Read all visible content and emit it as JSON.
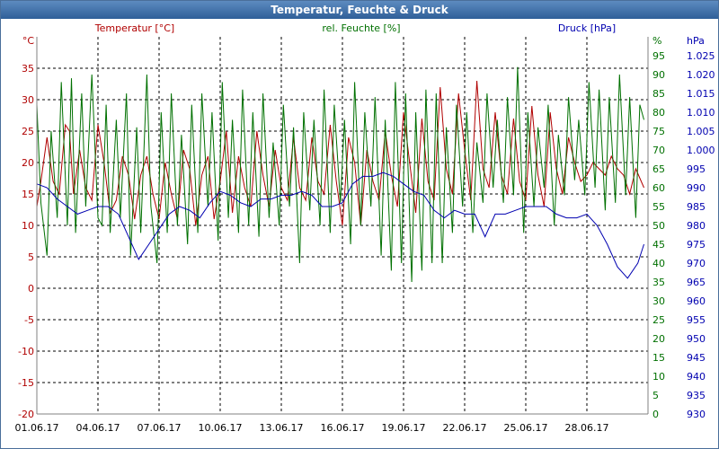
{
  "window": {
    "title": "Temperatur, Feuchte & Druck"
  },
  "chart_data": {
    "type": "line",
    "title": "Temperatur, Feuchte & Druck",
    "grid": true,
    "axes": {
      "temperature": {
        "label": "Temperatur [°C]",
        "unit": "°C",
        "range": [
          -20,
          40
        ],
        "ticks": [
          -20,
          -15,
          -10,
          -5,
          0,
          5,
          10,
          15,
          20,
          25,
          30,
          35
        ],
        "color": "#b00000"
      },
      "humidity": {
        "label": "rel. Feuchte [%]",
        "unit": "%",
        "range": [
          0,
          100
        ],
        "ticks": [
          0,
          5,
          10,
          15,
          20,
          25,
          30,
          35,
          40,
          45,
          50,
          55,
          60,
          65,
          70,
          75,
          80,
          85,
          90,
          95
        ],
        "color": "#007000"
      },
      "pressure": {
        "label": "Druck [hPa]",
        "unit": "hPa",
        "range": [
          930,
          1030
        ],
        "ticks": [
          "930",
          "935",
          "940",
          "945",
          "950",
          "955",
          "960",
          "965",
          "970",
          "975",
          "980",
          "985",
          "990",
          "995",
          "1.000",
          "1.005",
          "1.010",
          "1.015",
          "1.020",
          "1.025"
        ],
        "color": "#0000b0"
      }
    },
    "x_axis": {
      "start": "01.06.17",
      "days": 30,
      "tick_labels": [
        "01.06.17",
        "04.06.17",
        "07.06.17",
        "10.06.17",
        "13.06.17",
        "16.06.17",
        "19.06.17",
        "22.06.17",
        "25.06.17",
        "28.06.17"
      ]
    },
    "series": [
      {
        "name": "Temperatur [°C]",
        "axis": "temperature",
        "color": "#b00000",
        "x": [
          0,
          0.2,
          0.5,
          0.8,
          1.1,
          1.4,
          1.6,
          1.8,
          2.1,
          2.4,
          2.7,
          3.0,
          3.3,
          3.6,
          3.9,
          4.2,
          4.5,
          4.8,
          5.1,
          5.4,
          5.7,
          6.0,
          6.3,
          6.6,
          6.9,
          7.2,
          7.5,
          7.8,
          8.1,
          8.4,
          8.7,
          9.0,
          9.3,
          9.6,
          9.9,
          10.2,
          10.5,
          10.8,
          11.1,
          11.4,
          11.7,
          12.0,
          12.3,
          12.6,
          12.9,
          13.2,
          13.5,
          13.8,
          14.1,
          14.4,
          14.7,
          15.0,
          15.3,
          15.6,
          15.9,
          16.2,
          16.5,
          16.8,
          17.1,
          17.4,
          17.7,
          18.0,
          18.3,
          18.6,
          18.9,
          19.2,
          19.5,
          19.8,
          20.1,
          20.4,
          20.7,
          21.0,
          21.3,
          21.6,
          21.9,
          22.2,
          22.5,
          22.8,
          23.1,
          23.4,
          23.7,
          24.0,
          24.3,
          24.6,
          24.9,
          25.2,
          25.5,
          25.8,
          26.1,
          26.4,
          26.7,
          27.0,
          27.3,
          27.6,
          27.9,
          28.2,
          28.5,
          28.8,
          29.1,
          29.4,
          29.8
        ],
        "values": [
          13,
          17,
          24,
          17,
          15,
          26,
          25,
          15,
          22,
          16,
          14,
          26,
          20,
          12,
          14,
          21,
          18,
          11,
          18,
          21,
          15,
          11,
          20,
          15,
          11,
          22,
          19,
          10,
          18,
          21,
          11,
          17,
          25,
          12,
          21,
          16,
          13,
          25,
          18,
          13,
          22,
          16,
          14,
          24,
          16,
          14,
          24,
          17,
          15,
          26,
          17,
          10,
          24,
          20,
          10,
          22,
          17,
          14,
          25,
          18,
          13,
          28,
          20,
          12,
          27,
          17,
          14,
          32,
          19,
          15,
          31,
          22,
          14,
          33,
          19,
          16,
          28,
          18,
          15,
          27,
          17,
          14,
          29,
          18,
          13,
          28,
          19,
          15,
          24,
          20,
          17,
          18,
          20,
          19,
          18,
          21,
          19,
          18,
          15,
          19,
          16
        ]
      },
      {
        "name": "rel. Feuchte [%]",
        "axis": "humidity",
        "color": "#007000",
        "x": [
          0,
          0.2,
          0.5,
          0.7,
          1.0,
          1.2,
          1.5,
          1.7,
          1.9,
          2.2,
          2.4,
          2.7,
          3.0,
          3.2,
          3.4,
          3.6,
          3.9,
          4.1,
          4.4,
          4.6,
          4.9,
          5.1,
          5.4,
          5.6,
          5.9,
          6.1,
          6.4,
          6.6,
          6.9,
          7.1,
          7.4,
          7.6,
          7.9,
          8.1,
          8.4,
          8.6,
          8.9,
          9.1,
          9.4,
          9.6,
          9.9,
          10.1,
          10.4,
          10.6,
          10.9,
          11.1,
          11.4,
          11.6,
          11.9,
          12.1,
          12.4,
          12.6,
          12.9,
          13.1,
          13.4,
          13.6,
          13.9,
          14.1,
          14.4,
          14.6,
          14.9,
          15.1,
          15.4,
          15.6,
          15.9,
          16.1,
          16.4,
          16.6,
          16.9,
          17.1,
          17.4,
          17.6,
          17.9,
          18.1,
          18.4,
          18.6,
          18.9,
          19.1,
          19.4,
          19.6,
          19.9,
          20.1,
          20.4,
          20.6,
          20.9,
          21.1,
          21.4,
          21.6,
          21.9,
          22.1,
          22.4,
          22.6,
          22.9,
          23.1,
          23.4,
          23.6,
          23.9,
          24.1,
          24.4,
          24.6,
          24.9,
          25.1,
          25.4,
          25.6,
          25.9,
          26.1,
          26.4,
          26.6,
          26.9,
          27.1,
          27.4,
          27.6,
          27.9,
          28.1,
          28.4,
          28.6,
          28.9,
          29.1,
          29.4,
          29.6,
          29.8
        ],
        "values": [
          82,
          56,
          42,
          75,
          52,
          88,
          50,
          89,
          48,
          85,
          55,
          90,
          52,
          50,
          82,
          48,
          78,
          52,
          85,
          42,
          76,
          48,
          90,
          55,
          40,
          80,
          48,
          85,
          50,
          74,
          45,
          82,
          48,
          85,
          55,
          80,
          46,
          88,
          52,
          78,
          48,
          86,
          50,
          80,
          47,
          85,
          52,
          72,
          50,
          82,
          55,
          76,
          40,
          80,
          54,
          78,
          50,
          86,
          48,
          82,
          56,
          78,
          45,
          88,
          50,
          80,
          55,
          84,
          42,
          78,
          38,
          88,
          40,
          85,
          35,
          80,
          38,
          86,
          40,
          85,
          40,
          76,
          48,
          82,
          55,
          80,
          48,
          72,
          56,
          85,
          60,
          78,
          56,
          84,
          58,
          92,
          48,
          80,
          55,
          76,
          60,
          82,
          50,
          74,
          58,
          84,
          62,
          78,
          58,
          88,
          60,
          86,
          54,
          84,
          56,
          90,
          58,
          84,
          52,
          82,
          78
        ]
      },
      {
        "name": "Druck [hPa]",
        "axis": "pressure",
        "color": "#0000b0",
        "x": [
          0,
          0.5,
          1.0,
          1.5,
          2.0,
          2.5,
          3.0,
          3.5,
          4.0,
          4.5,
          5.0,
          5.5,
          6.0,
          6.5,
          7.0,
          7.5,
          8.0,
          8.5,
          9.0,
          9.5,
          10.0,
          10.5,
          11.0,
          11.5,
          12.0,
          12.5,
          13.0,
          13.5,
          14.0,
          14.5,
          15.0,
          15.5,
          16.0,
          16.5,
          17.0,
          17.5,
          18.0,
          18.5,
          19.0,
          19.5,
          20.0,
          20.5,
          21.0,
          21.5,
          22.0,
          22.5,
          23.0,
          23.5,
          24.0,
          24.5,
          25.0,
          25.5,
          26.0,
          26.5,
          27.0,
          27.5,
          28.0,
          28.5,
          29.0,
          29.5,
          29.8
        ],
        "values": [
          991,
          990,
          987,
          985,
          983,
          984,
          985,
          985,
          983,
          977,
          971,
          975,
          979,
          983,
          985,
          984,
          982,
          986,
          989,
          988,
          986,
          985,
          987,
          987,
          988,
          988,
          989,
          988,
          985,
          985,
          986,
          991,
          993,
          993,
          994,
          993,
          991,
          989,
          988,
          984,
          982,
          984,
          983,
          983,
          977,
          983,
          983,
          984,
          985,
          985,
          985,
          983,
          982,
          982,
          983,
          980,
          975,
          969,
          966,
          970,
          975
        ]
      }
    ]
  }
}
